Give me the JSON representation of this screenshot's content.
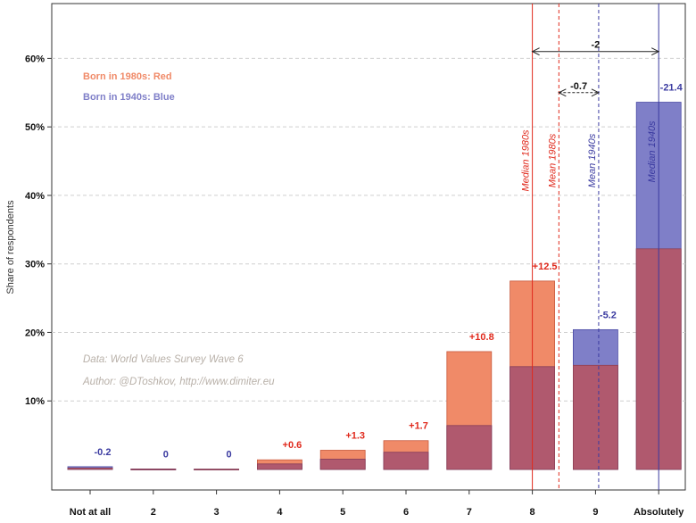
{
  "chart_data": {
    "type": "bar",
    "ylabel": "Share of respondents",
    "ylim": [
      -0.03,
      0.68
    ],
    "yticks": [
      0.1,
      0.2,
      0.3,
      0.4,
      0.5,
      0.6
    ],
    "ytick_labels": [
      "10%",
      "20%",
      "30%",
      "40%",
      "50%",
      "60%"
    ],
    "categories": [
      "Not at all",
      "2",
      "3",
      "4",
      "5",
      "6",
      "7",
      "8",
      "9",
      "Absolutely"
    ],
    "grid": "horizontal dashed",
    "series": [
      {
        "name": "Born in 1980s: Red",
        "values": [
          0.002,
          0.0005,
          0.0003,
          0.014,
          0.028,
          0.042,
          0.172,
          0.275,
          0.152,
          0.322
        ],
        "color": "#F08A68"
      },
      {
        "name": "Born in 1940s: Blue",
        "values": [
          0.004,
          0.0005,
          0.0003,
          0.008,
          0.015,
          0.025,
          0.064,
          0.15,
          0.204,
          0.536
        ],
        "color": "#7F7FC8"
      }
    ],
    "overlap_color": "#B0596E",
    "difference_labels": [
      {
        "category": "Not at all",
        "text": "-0.2",
        "color": "#3A3AA0"
      },
      {
        "category": "2",
        "text": "0",
        "color": "#3A3AA0"
      },
      {
        "category": "3",
        "text": "0",
        "color": "#3A3AA0"
      },
      {
        "category": "4",
        "text": "+0.6",
        "color": "#E0291C"
      },
      {
        "category": "5",
        "text": "+1.3",
        "color": "#E0291C"
      },
      {
        "category": "6",
        "text": "+1.7",
        "color": "#E0291C"
      },
      {
        "category": "7",
        "text": "+10.8",
        "color": "#E0291C"
      },
      {
        "category": "8",
        "text": "+12.5",
        "color": "#E0291C"
      },
      {
        "category": "9",
        "text": "-5.2",
        "color": "#3A3AA0"
      },
      {
        "category": "Absolutely",
        "text": "-21.4",
        "color": "#3A3AA0"
      }
    ],
    "reference_lines": [
      {
        "label": "Median 1980s",
        "x": 8,
        "style": "solid",
        "color": "#E0291C"
      },
      {
        "label": "Mean 1980s",
        "x": 8.42,
        "style": "dashed",
        "color": "#E0291C"
      },
      {
        "label": "Mean 1940s",
        "x": 9.05,
        "style": "dashed",
        "color": "#3A3AA0"
      },
      {
        "label": "Median 1940s",
        "x": 10,
        "style": "solid",
        "color": "#3A3AA0"
      }
    ],
    "gap_annotations": [
      {
        "text": "-2",
        "from": 8,
        "to": 10,
        "y": 0.61,
        "style": "solid"
      },
      {
        "text": "-0.7",
        "from": 8.42,
        "to": 9.05,
        "y": 0.55,
        "style": "dashed"
      }
    ],
    "legend": [
      {
        "text": "Born in 1980s: Red",
        "color": "#F08A68"
      },
      {
        "text": "Born in 1940s: Blue",
        "color": "#7F7FC8"
      }
    ],
    "legend_placement": "top-left",
    "annotations": [
      {
        "text": "Data: World Values Survey Wave 6"
      },
      {
        "text": "Author: @DToshkov, http://www.dimiter.eu"
      }
    ]
  }
}
